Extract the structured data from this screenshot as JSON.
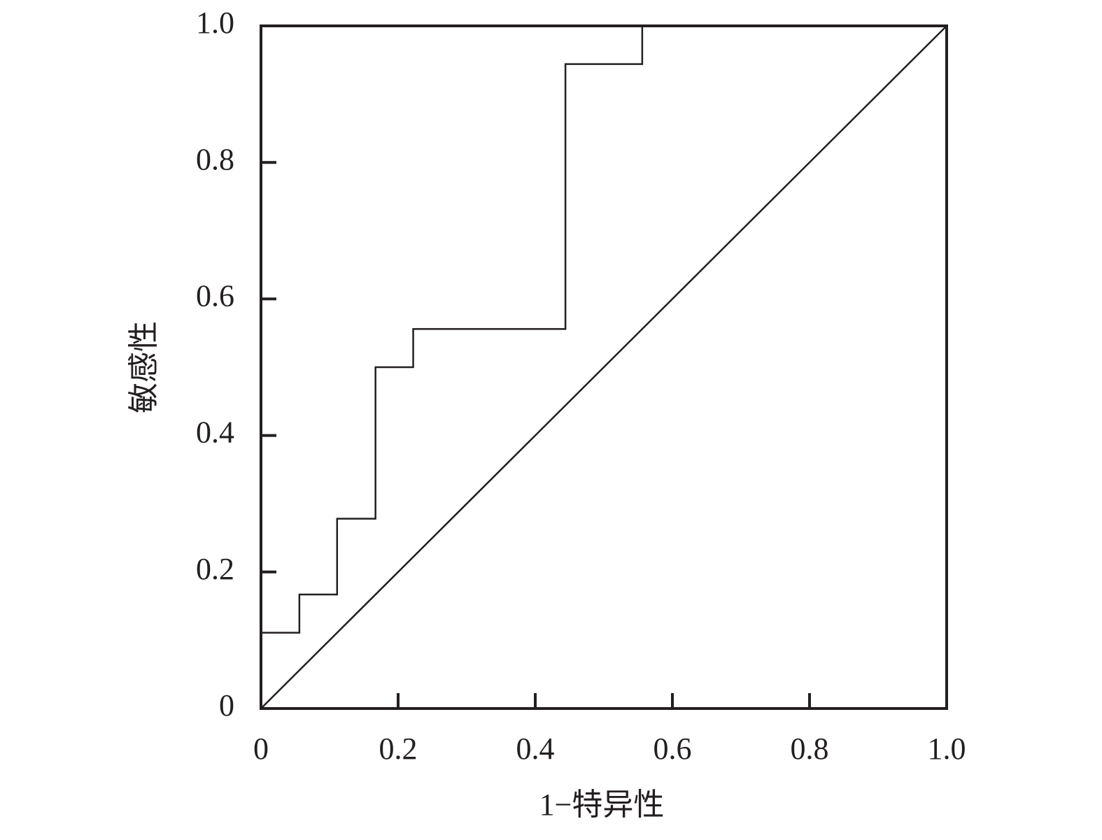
{
  "chart_data": {
    "type": "line",
    "xlabel": "1−特异性",
    "ylabel": "敏感性",
    "xlim": [
      0,
      1
    ],
    "ylim": [
      0,
      1
    ],
    "xticks": [
      0,
      0.2,
      0.4,
      0.6,
      0.8,
      {
        "value": 1,
        "label": "1.0"
      }
    ],
    "yticks": [
      0,
      0.2,
      0.4,
      0.6,
      0.8,
      {
        "value": 1,
        "label": "1.0"
      }
    ],
    "grid": false,
    "series": [
      {
        "color": "#231f20",
        "x": [
          0,
          0.056,
          0.056,
          0.111,
          0.111,
          0.167,
          0.167,
          0.222,
          0.222,
          0.444,
          0.444,
          0.556,
          0.556,
          1
        ],
        "values": [
          0.111,
          0.111,
          0.167,
          0.167,
          0.278,
          0.278,
          0.5,
          0.5,
          0.556,
          0.556,
          0.944,
          0.944,
          1,
          1
        ]
      },
      {
        "color": "#231f20",
        "x": [
          0,
          1
        ],
        "values": [
          0,
          1
        ]
      }
    ]
  }
}
